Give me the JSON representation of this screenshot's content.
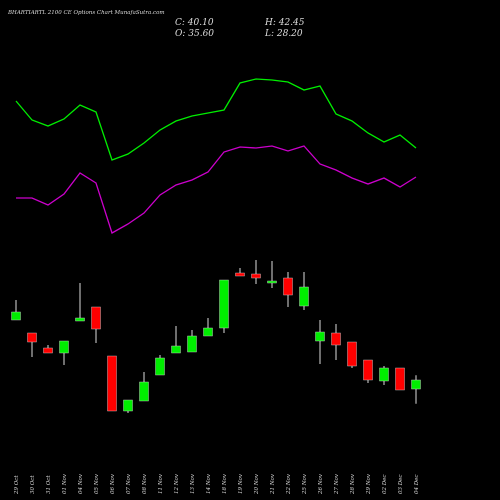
{
  "chart_data": {
    "type": "candlestick",
    "title": "BHARTIARTL 2100 CE Options  Chart MunafaSutra.com",
    "stats": [
      "C: 40.10",
      "H: 42.45",
      "O: 35.60",
      "L: 28.20"
    ],
    "x": [
      "29 Oct",
      "30 Oct",
      "31 Oct",
      "01 Nov",
      "04 Nov",
      "05 Nov",
      "06 Nov",
      "07 Nov",
      "08 Nov",
      "11 Nov",
      "12 Nov",
      "13 Nov",
      "14 Nov",
      "18 Nov",
      "19 Nov",
      "20 Nov",
      "21 Nov",
      "22 Nov",
      "25 Nov",
      "26 Nov",
      "27 Nov",
      "28 Nov",
      "29 Nov",
      "02 Dec",
      "03 Dec",
      "04 Dec"
    ],
    "open": [
      70.1,
      63.6,
      56.1,
      53.6,
      69.6,
      76.6,
      52.1,
      24.6,
      29.6,
      42.6,
      53.6,
      54.1,
      62.1,
      66.1,
      93.6,
      93.1,
      88.6,
      91.1,
      77.1,
      59.6,
      63.6,
      59.1,
      50.1,
      39.6,
      46.1,
      35.6
    ],
    "high": [
      80.1,
      63.6,
      57.6,
      59.6,
      88.6,
      76.6,
      52.1,
      30.1,
      44.1,
      52.6,
      67.1,
      65.1,
      71.1,
      90.1,
      96.1,
      100.1,
      99.6,
      94.1,
      94.1,
      70.1,
      68.1,
      59.1,
      50.1,
      47.1,
      46.1,
      42.45
    ],
    "low": [
      70.1,
      51.6,
      53.6,
      47.6,
      69.6,
      58.6,
      24.6,
      23.6,
      29.6,
      42.6,
      53.6,
      54.1,
      62.1,
      63.6,
      92.1,
      88.1,
      86.1,
      76.6,
      75.1,
      48.1,
      50.1,
      46.1,
      38.6,
      37.6,
      35.1,
      28.2
    ],
    "close": [
      74.1,
      59.1,
      53.6,
      59.6,
      71.1,
      65.6,
      24.6,
      30.1,
      39.1,
      51.1,
      57.1,
      62.1,
      66.1,
      90.1,
      92.1,
      91.1,
      89.6,
      82.6,
      86.6,
      64.1,
      57.6,
      47.1,
      40.1,
      46.1,
      35.1,
      40.1
    ],
    "up_color": "#00ee00",
    "down_color": "#ff0000",
    "series": [
      {
        "color": "#00ee00",
        "values": [
          179.6,
          170.1,
          167.1,
          170.6,
          177.6,
          174.1,
          150.1,
          153.1,
          158.6,
          165.1,
          169.6,
          172.1,
          173.6,
          175.1,
          188.6,
          190.6,
          190.1,
          189.1,
          185.1,
          187.1,
          173.1,
          169.6,
          163.6,
          159.1,
          162.6,
          156.1
        ]
      },
      {
        "color": "#cc00cc",
        "values": [
          131.1,
          131.1,
          127.6,
          133.1,
          143.6,
          138.6,
          113.6,
          118.1,
          123.6,
          132.6,
          137.6,
          140.1,
          144.1,
          154.1,
          156.6,
          156.1,
          157.1,
          154.6,
          157.1,
          148.1,
          145.1,
          141.1,
          138.1,
          141.1,
          136.6,
          141.6
        ]
      }
    ]
  }
}
